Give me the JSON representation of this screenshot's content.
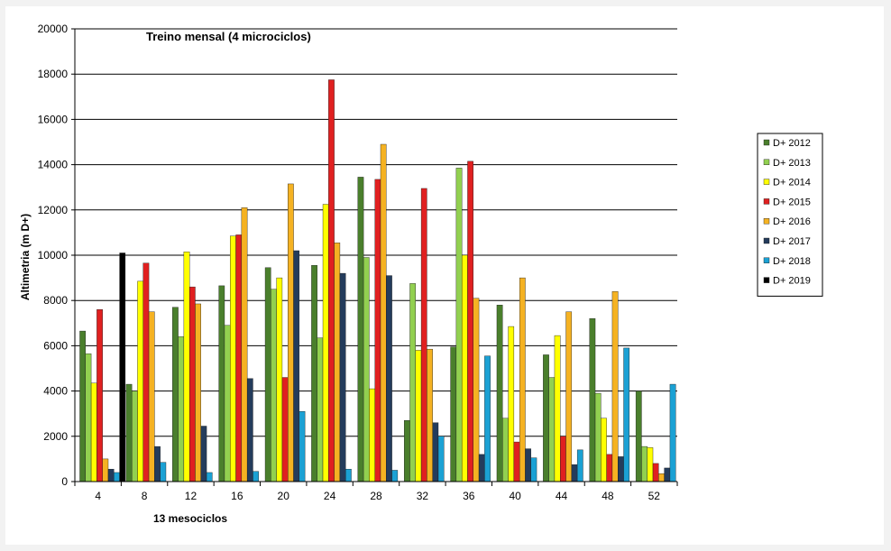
{
  "chart_data": {
    "type": "bar",
    "title": "Treino mensal (4 microciclos)",
    "xlabel": "13 mesociclos",
    "ylabel": "Altimetria (m D+)",
    "ylim": [
      0,
      20000
    ],
    "yticks": [
      0,
      2000,
      4000,
      6000,
      8000,
      10000,
      12000,
      14000,
      16000,
      18000,
      20000
    ],
    "grid": true,
    "legend_position": "right",
    "categories": [
      "4",
      "8",
      "12",
      "16",
      "20",
      "24",
      "28",
      "32",
      "36",
      "40",
      "44",
      "48",
      "52"
    ],
    "series": [
      {
        "name": "D+ 2012",
        "color": "#4a7f2c",
        "values": [
          6650,
          4300,
          7700,
          8650,
          9450,
          9550,
          13450,
          2700,
          5950,
          7800,
          5600,
          7200,
          4000
        ]
      },
      {
        "name": "D+ 2013",
        "color": "#92d050",
        "values": [
          5650,
          4000,
          6400,
          6900,
          8500,
          6350,
          9900,
          8750,
          13850,
          2800,
          4600,
          3900,
          1550
        ]
      },
      {
        "name": "D+ 2014",
        "color": "#ffff00",
        "values": [
          4350,
          8850,
          10150,
          10850,
          9000,
          12250,
          4100,
          5800,
          10000,
          6850,
          6450,
          2800,
          1500
        ]
      },
      {
        "name": "D+ 2015",
        "color": "#e02020",
        "values": [
          7600,
          9650,
          8600,
          10900,
          4600,
          17750,
          13350,
          12950,
          14150,
          1750,
          2000,
          1200,
          800
        ]
      },
      {
        "name": "D+ 2016",
        "color": "#f5b222",
        "values": [
          1000,
          7500,
          7850,
          12100,
          13150,
          10550,
          14900,
          5850,
          8100,
          9000,
          7500,
          8400,
          350
        ]
      },
      {
        "name": "D+ 2017",
        "color": "#243c5c",
        "values": [
          550,
          1550,
          2450,
          4550,
          10200,
          9200,
          9100,
          2600,
          1200,
          1450,
          750,
          1100,
          600
        ]
      },
      {
        "name": "D+ 2018",
        "color": "#1ba1d4",
        "values": [
          400,
          850,
          400,
          450,
          3100,
          550,
          500,
          2000,
          5550,
          1050,
          1400,
          5900,
          4300
        ]
      },
      {
        "name": "D+ 2019",
        "color": "#000000",
        "values": [
          10100,
          0,
          0,
          0,
          0,
          0,
          0,
          0,
          0,
          0,
          0,
          0,
          0
        ]
      }
    ]
  }
}
